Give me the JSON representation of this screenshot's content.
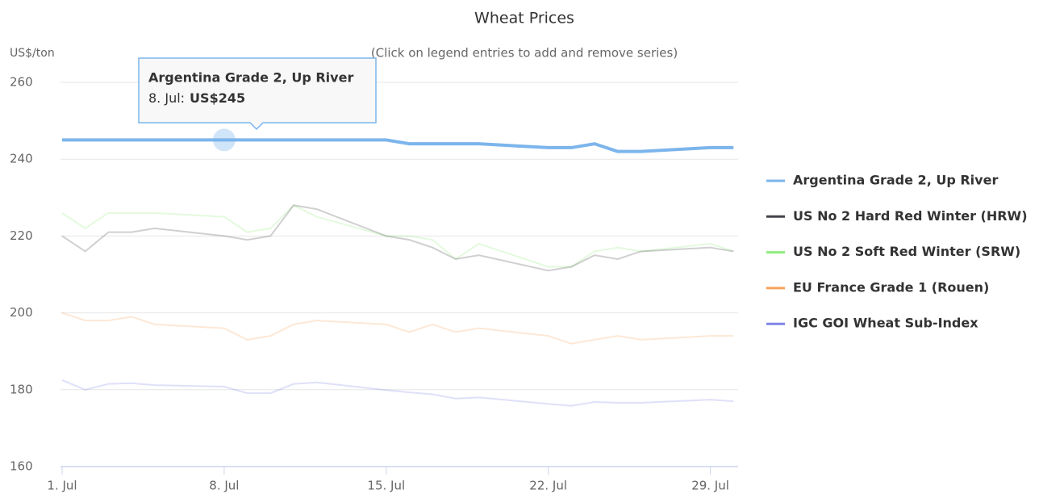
{
  "chart_data": {
    "type": "line",
    "title": "Wheat Prices",
    "subtitle": "(Click on legend entries to add and remove series)",
    "y_axis_label": "US$/ton",
    "x": [
      1,
      2,
      3,
      4,
      5,
      8,
      9,
      10,
      11,
      12,
      15,
      16,
      17,
      18,
      19,
      22,
      23,
      24,
      25,
      26,
      29,
      30
    ],
    "xlim": [
      1,
      30.2
    ],
    "xticks": [
      {
        "value": 1,
        "label": "1. Jul"
      },
      {
        "value": 8,
        "label": "8. Jul"
      },
      {
        "value": 15,
        "label": "15. Jul"
      },
      {
        "value": 22,
        "label": "22. Jul"
      },
      {
        "value": 29,
        "label": "29. Jul"
      }
    ],
    "ylim": [
      160,
      260
    ],
    "yticks": [
      160,
      180,
      200,
      220,
      240,
      260
    ],
    "grid": true,
    "legend": "right",
    "series": [
      {
        "name": "Argentina Grade 2, Up River",
        "color": "#7cb5ec",
        "values": [
          245,
          245,
          245,
          245,
          245,
          245,
          245,
          245,
          245,
          245,
          245,
          244,
          244,
          244,
          244,
          243,
          243,
          244,
          242,
          242,
          243,
          243
        ]
      },
      {
        "name": "US No 2 Hard Red Winter (HRW)",
        "color": "#434348",
        "values": [
          220,
          216,
          221,
          221,
          222,
          220,
          219,
          220,
          228,
          227,
          220,
          219,
          217,
          214,
          215,
          211,
          212,
          215,
          214,
          216,
          217,
          216
        ]
      },
      {
        "name": "US No 2 Soft Red Winter (SRW)",
        "color": "#90ed7d",
        "values": [
          226,
          222,
          226,
          226,
          226,
          225,
          221,
          222,
          228,
          225,
          220,
          220,
          219,
          214,
          218,
          212,
          212,
          216,
          217,
          216,
          218,
          216
        ]
      },
      {
        "name": "EU France Grade 1 (Rouen)",
        "color": "#f7a35c",
        "values": [
          200,
          198,
          198,
          199,
          197,
          196,
          193,
          194,
          197,
          198,
          197,
          195,
          197,
          195,
          196,
          194,
          192,
          193,
          194,
          193,
          194,
          194
        ]
      },
      {
        "name": "IGC GOI Wheat Sub-Index",
        "color": "#8085e9",
        "values": [
          182.5,
          180,
          181.5,
          181.7,
          181.2,
          180.8,
          179.1,
          179.1,
          181.5,
          181.9,
          179.9,
          179.3,
          178.8,
          177.7,
          178,
          176.3,
          175.8,
          176.8,
          176.6,
          176.6,
          177.4,
          177
        ]
      }
    ],
    "tooltip": {
      "point_label": "8. Jul:",
      "value_label": "US$245"
    }
  }
}
